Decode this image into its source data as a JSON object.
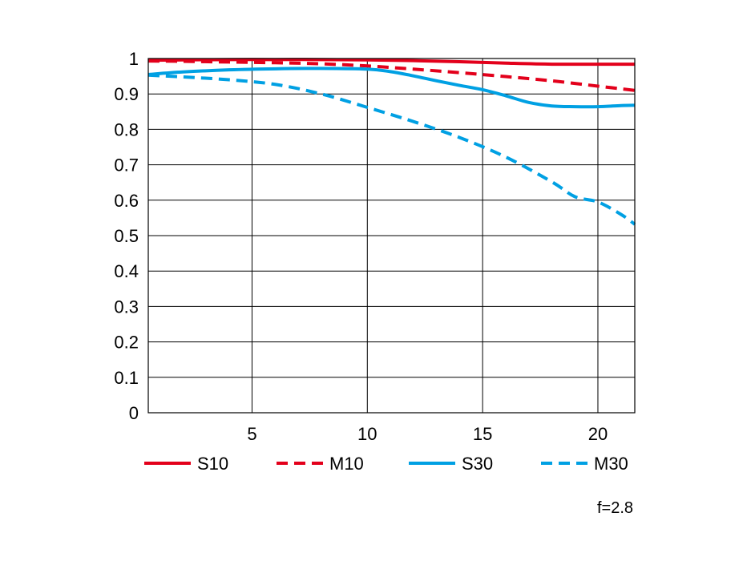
{
  "chart_data": {
    "type": "line",
    "title": "",
    "xlabel": "",
    "ylabel": "",
    "xlim": [
      0.5,
      21.6
    ],
    "ylim": [
      0,
      1
    ],
    "grid": true,
    "x_ticks": [
      5,
      10,
      15,
      20
    ],
    "x_tick_labels": [
      "5",
      "10",
      "15",
      "20"
    ],
    "y_ticks": [
      0,
      0.1,
      0.2,
      0.3,
      0.4,
      0.5,
      0.6,
      0.7,
      0.8,
      0.9,
      1
    ],
    "y_tick_labels": [
      "0",
      "0.1",
      "0.2",
      "0.3",
      "0.4",
      "0.5",
      "0.6",
      "0.7",
      "0.8",
      "0.9",
      "1"
    ],
    "legend_position": "bottom",
    "annotation": "f=2.8",
    "series": [
      {
        "name": "S10",
        "color": "#e3001b",
        "style": "solid",
        "x": [
          0.5,
          2,
          4,
          6,
          8,
          10,
          12,
          14,
          16,
          18,
          20,
          21.6
        ],
        "y": [
          0.995,
          0.996,
          0.997,
          0.997,
          0.997,
          0.996,
          0.994,
          0.991,
          0.987,
          0.984,
          0.984,
          0.984
        ]
      },
      {
        "name": "M10",
        "color": "#e3001b",
        "style": "dashed",
        "x": [
          0.5,
          2,
          4,
          6,
          8,
          10,
          12,
          14,
          16,
          18,
          20,
          21.6
        ],
        "y": [
          0.993,
          0.992,
          0.99,
          0.988,
          0.985,
          0.979,
          0.97,
          0.96,
          0.949,
          0.937,
          0.922,
          0.91
        ]
      },
      {
        "name": "S30",
        "color": "#00a0e3",
        "style": "solid",
        "x": [
          0.5,
          2,
          4,
          6,
          8,
          10,
          11,
          12,
          13,
          14,
          15,
          16,
          17,
          18,
          19,
          20,
          21,
          21.6
        ],
        "y": [
          0.955,
          0.962,
          0.968,
          0.971,
          0.972,
          0.97,
          0.963,
          0.951,
          0.937,
          0.924,
          0.912,
          0.895,
          0.876,
          0.866,
          0.864,
          0.864,
          0.867,
          0.868
        ]
      },
      {
        "name": "M30",
        "color": "#00a0e3",
        "style": "dashed",
        "x": [
          0.5,
          2,
          4,
          6,
          8,
          10,
          12,
          14,
          16,
          18,
          19,
          20,
          21,
          21.6
        ],
        "y": [
          0.953,
          0.948,
          0.94,
          0.927,
          0.9,
          0.862,
          0.822,
          0.777,
          0.722,
          0.652,
          0.61,
          0.595,
          0.56,
          0.532
        ]
      }
    ]
  }
}
